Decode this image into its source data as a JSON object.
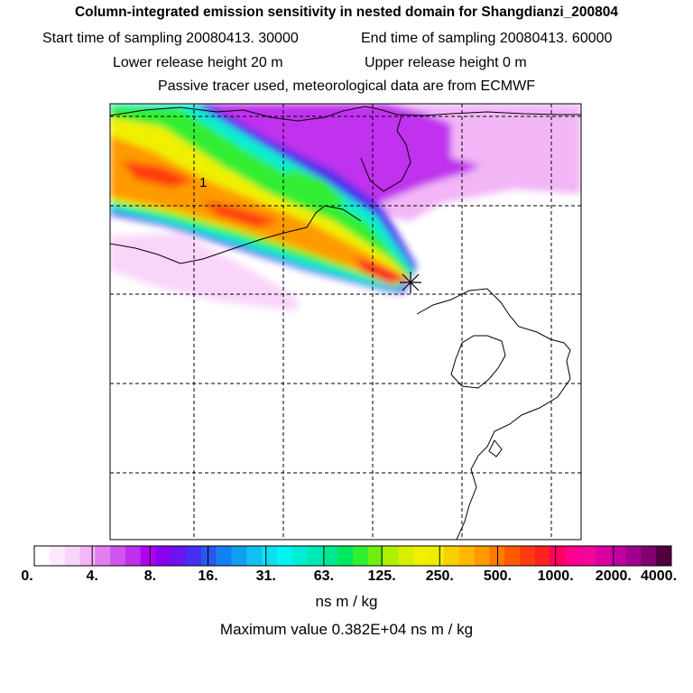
{
  "header": {
    "title": "Column-integrated emission sensitivity in nested domain for Shangdianzi_200804",
    "start_label": "Start time of sampling 20080413. 30000",
    "end_label": "End time of sampling 20080413. 60000",
    "lower_label": "Lower release height   20 m",
    "upper_label": "Upper release height    0 m",
    "note": "Passive tracer used, meteorological data are from ECMWF"
  },
  "chart_data": {
    "type": "heatmap",
    "title": "Column-integrated emission sensitivity in nested domain for Shangdianzi_200804",
    "units": "ns m / kg",
    "max_value_text": "Maximum value  0.382E+04 ns m / kg",
    "contour_label": "1",
    "colorbar": {
      "tick_labels": [
        "0.",
        "4.",
        "8.",
        "16.",
        "31.",
        "63.",
        "125.",
        "250.",
        "500.",
        "1000.",
        "2000.",
        "4000."
      ],
      "colors": [
        "#ffffff",
        "#fde9fd",
        "#f9d5f9",
        "#f2b6f6",
        "#e080f0",
        "#d055ee",
        "#c030ee",
        "#b000ee",
        "#8a00f0",
        "#6a14ee",
        "#4430ee",
        "#2858ee",
        "#1480f0",
        "#10a0f0",
        "#10c0f0",
        "#10ddf0",
        "#00f5f0",
        "#00eed4",
        "#00e8b4",
        "#00e890",
        "#00e860",
        "#30ee30",
        "#70f010",
        "#b0f000",
        "#d8f000",
        "#f0f000",
        "#f0ec00",
        "#f8d000",
        "#ffb800",
        "#ff9a00",
        "#ff7a00",
        "#ff5a00",
        "#ff3c10",
        "#ff2020",
        "#ff0060",
        "#ff0090",
        "#f00898",
        "#dc00a0",
        "#c000a0",
        "#a00090",
        "#800070",
        "#500040"
      ]
    },
    "grid": true,
    "release_site_marker": "star"
  }
}
